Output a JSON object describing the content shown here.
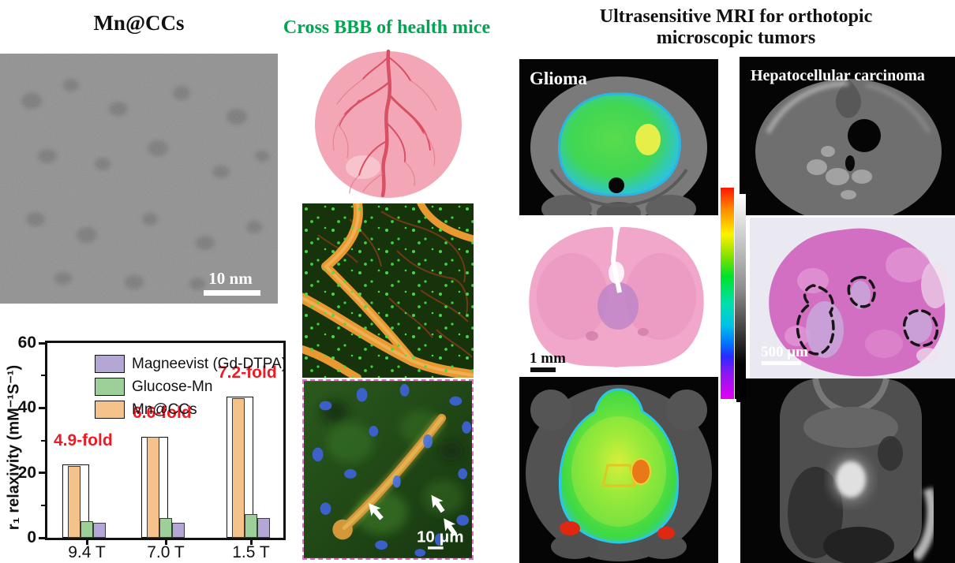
{
  "left": {
    "title": "Mn@CCs",
    "tem_scale_bar": "10 nm"
  },
  "middle": {
    "title": "Cross BBB of health mice",
    "fluor_scale_bar": "10 μm"
  },
  "right": {
    "title_line1": "Ultrasensitive MRI for orthotopic",
    "title_line2": "microscopic tumors",
    "glioma_label": "Glioma",
    "hcc_label": "Hepatocellular carcinoma",
    "brain_scale_bar": "1 mm",
    "liver_scale_bar": "500 μm"
  },
  "colors": {
    "middle_title_green": "#00A651",
    "fold_label_red": "#EC1B24"
  },
  "chart_data": {
    "type": "bar",
    "title": "",
    "categories": [
      "9.4 T",
      "7.0 T",
      "1.5 T"
    ],
    "series": [
      {
        "name": "Magneevist (Gd-DTPA)",
        "color": "#B5A7D5",
        "values": [
          4.5,
          4.7,
          6.0
        ]
      },
      {
        "name": "Glucose-Mn",
        "color": "#9CD098",
        "values": [
          5.0,
          6.0,
          7.3
        ]
      },
      {
        "name": "Mn@CCs",
        "color": "#F6C28B",
        "values": [
          22,
          31,
          43
        ]
      }
    ],
    "open_bars": [
      22.5,
      31.2,
      43.5
    ],
    "fold_annotations": [
      "4.9-fold",
      "6.6-fold",
      "7.2-fold"
    ],
    "ylabel": "r₁ relaxivity (mM⁻¹S⁻¹)",
    "ylim": [
      0,
      60
    ],
    "yticks": [
      0,
      20,
      40,
      60
    ],
    "yticks_minor": [
      10,
      30,
      50
    ],
    "legend_position": "top-left",
    "grid": false
  }
}
